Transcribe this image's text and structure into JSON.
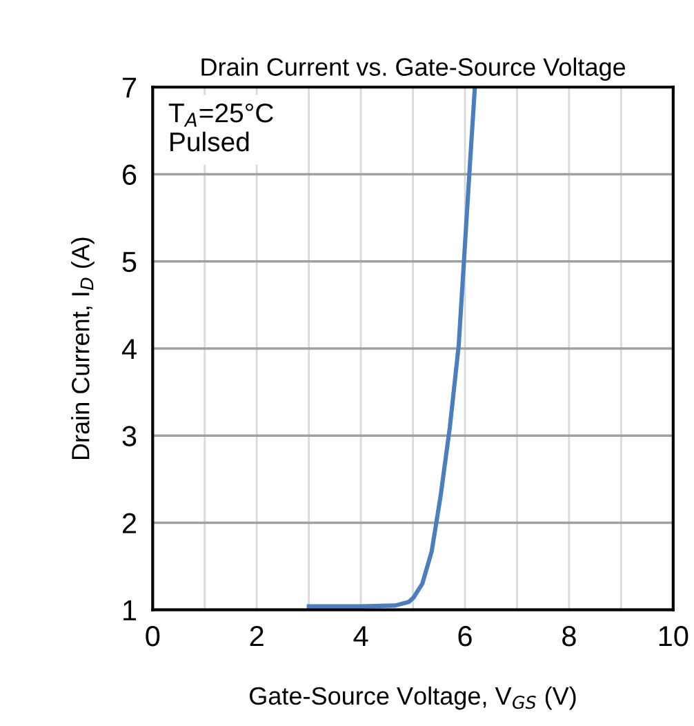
{
  "chart_data": {
    "type": "line",
    "title": "Drain Current vs. Gate-Source Voltage",
    "xlabel": "Gate-Source Voltage, V$_{GS}$ (V)",
    "ylabel": "Drain Current, I$_{D}$ (A)",
    "annotations": [
      "T$_{A}$=25°C\nPulsed"
    ],
    "series": [
      {
        "color": "#4a7ebf",
        "x": [
          3.0,
          4.0,
          4.66,
          4.92,
          5.01,
          5.18,
          5.36,
          5.53,
          5.71,
          5.88,
          5.99,
          6.1,
          6.19
        ],
        "values": [
          1.04,
          1.04,
          1.05,
          1.09,
          1.14,
          1.3,
          1.67,
          2.3,
          3.1,
          4.04,
          5.1,
          6.16,
          7.0
        ]
      }
    ],
    "xlim": [
      0,
      10
    ],
    "xticks": [
      0,
      2,
      4,
      6,
      8,
      10
    ],
    "ylim": [
      1,
      7
    ],
    "yticks": [
      1,
      2,
      3,
      4,
      5,
      6,
      7
    ],
    "grid": true,
    "marker": "none",
    "line_style": "solid",
    "legend": false
  }
}
